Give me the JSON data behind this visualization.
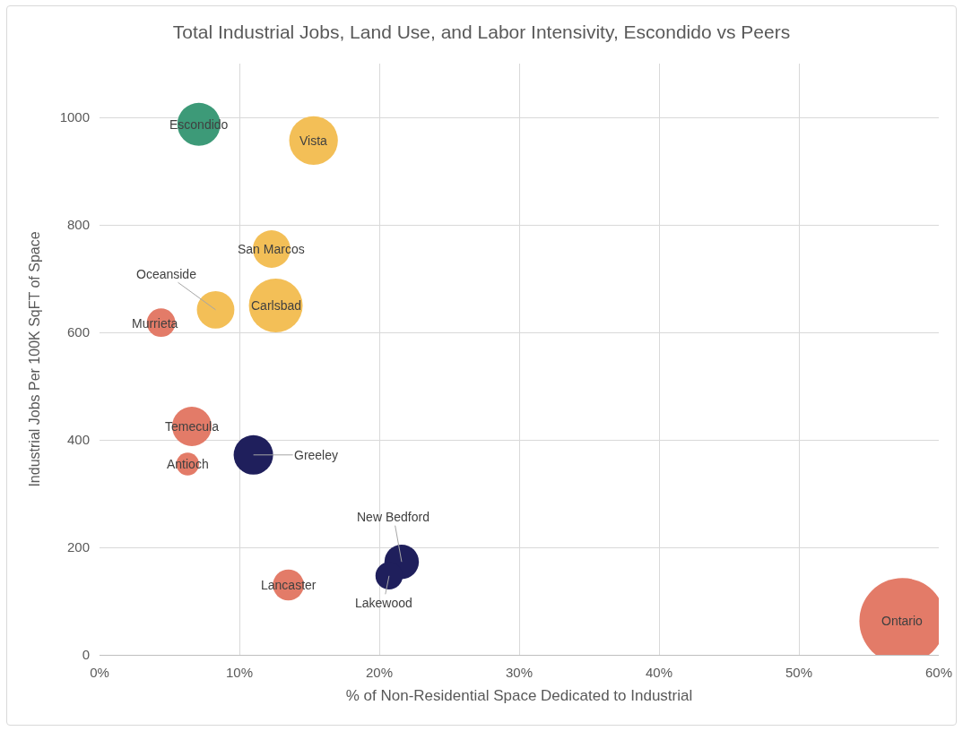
{
  "chart_data": {
    "type": "bubble",
    "title": "Total Industrial Jobs, Land Use, and Labor Intensivity, Escondido vs Peers",
    "xlabel": "% of Non-Residential Space Dedicated to Industrial",
    "ylabel": "Industrial Jobs Per 100K SqFT of Space",
    "series": [
      {
        "color": "#3d9a78",
        "x": [
          7.1
        ],
        "values": [
          987
        ],
        "sizes": [
          0.25
        ]
      },
      {
        "color": "#f3bf57",
        "x": [
          15.3,
          12.3,
          12.6,
          8.3
        ],
        "values": [
          957,
          755,
          650,
          642
        ],
        "sizes": [
          0.32,
          0.19,
          0.39,
          0.19
        ]
      },
      {
        "color": "#e37b68",
        "x": [
          4.4,
          6.6,
          6.3,
          13.5,
          57.4
        ],
        "values": [
          618,
          425,
          355,
          130,
          63
        ],
        "sizes": [
          0.11,
          0.21,
          0.07,
          0.13,
          1
        ]
      },
      {
        "color": "#1f1f5c",
        "x": [
          11.0,
          21.6,
          20.7
        ],
        "values": [
          372,
          173,
          147
        ],
        "sizes": [
          0.21,
          0.16,
          0.1
        ]
      }
    ],
    "annotations": [
      {
        "text": "Escondido",
        "x": 7.1,
        "y": 987
      },
      {
        "text": "Vista",
        "x": 15.3,
        "y": 957
      },
      {
        "text": "San Marcos",
        "x": 12.3,
        "y": 755
      },
      {
        "text": "Carlsbad",
        "x": 12.6,
        "y": 650
      },
      {
        "text": "Oceanside",
        "x": 8.3,
        "y": 642
      },
      {
        "text": "Murrieta",
        "x": 4.4,
        "y": 618
      },
      {
        "text": "Temecula",
        "x": 6.6,
        "y": 425
      },
      {
        "text": "Antioch",
        "x": 6.3,
        "y": 355
      },
      {
        "text": "Greeley",
        "x": 11.0,
        "y": 372
      },
      {
        "text": "New Bedford",
        "x": 21.6,
        "y": 173
      },
      {
        "text": "Lakewood",
        "x": 20.7,
        "y": 147
      },
      {
        "text": "Lancaster",
        "x": 13.5,
        "y": 130
      },
      {
        "text": "Ontario",
        "x": 57.4,
        "y": 63
      }
    ],
    "xlim": [
      0,
      60
    ],
    "xticks": [
      {
        "value": 0,
        "label": "0%"
      },
      {
        "value": 10,
        "label": "10%"
      },
      {
        "value": 20,
        "label": "20%"
      },
      {
        "value": 30,
        "label": "30%"
      },
      {
        "value": 40,
        "label": "40%"
      },
      {
        "value": 50,
        "label": "50%"
      },
      {
        "value": 60,
        "label": "60%"
      }
    ],
    "ylim": [
      0,
      1100
    ],
    "yticks": [
      0,
      200,
      400,
      600,
      800,
      1000
    ],
    "grid": true
  }
}
